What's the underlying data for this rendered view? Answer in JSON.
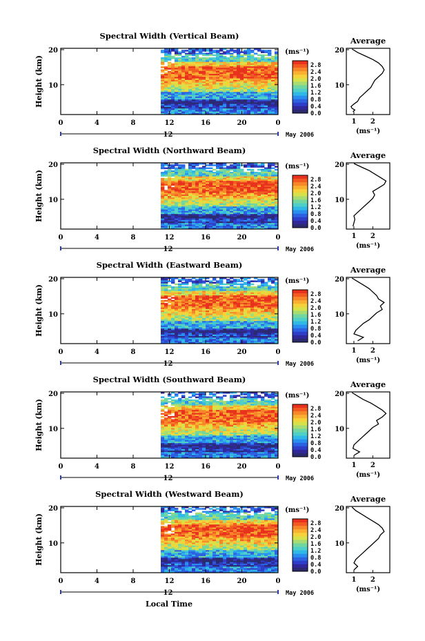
{
  "figure": {
    "xlabel": "Local Time"
  },
  "chart_data": [
    {
      "type": "heatmap",
      "title": "Spectral Width (Vertical Beam)",
      "ylabel": "Height (km)"
    },
    {
      "type": "heatmap",
      "title": "Spectral Width (Northward Beam)",
      "ylabel": "Height (km)"
    },
    {
      "type": "heatmap",
      "title": "Spectral Width (Eastward Beam)",
      "ylabel": "Height (km)"
    },
    {
      "type": "heatmap",
      "title": "Spectral Width (Southward Beam)",
      "ylabel": "Height (km)"
    },
    {
      "type": "heatmap",
      "title": "Spectral Width (Westward Beam)",
      "ylabel": "Height (km)"
    }
  ],
  "shared": {
    "x_ticks": [
      "0",
      "4",
      "8",
      "12",
      "16",
      "20",
      "0"
    ],
    "date_tick": "12",
    "date_label": "May 2006",
    "y_ticks": [
      "20",
      "10"
    ],
    "colorbar": {
      "unit": "(ms⁻¹)",
      "ticks": [
        "2.8",
        "2.4",
        "2.0",
        "1.6",
        "1.2",
        "0.8",
        "0.4",
        "0.0"
      ],
      "colors": [
        "#e8321e",
        "#f25a22",
        "#f7882a",
        "#f9b030",
        "#f5d23a",
        "#d7e24a",
        "#a6dc72",
        "#72d6a0",
        "#4ed0c8",
        "#30b8e6",
        "#2a8ef0",
        "#2c62e2",
        "#2e3ec8",
        "#30289a",
        "#2c2a6e"
      ]
    },
    "avg_title": "Average",
    "avg_y_ticks": [
      "20",
      "10"
    ],
    "avg_unit": "(ms⁻¹)"
  },
  "averages": [
    {
      "x_ticks": [
        "1",
        "2"
      ],
      "profile": [
        [
          0.95,
          2
        ],
        [
          1.05,
          2.5
        ],
        [
          0.9,
          3
        ],
        [
          0.85,
          3.5
        ],
        [
          1.0,
          4.2
        ],
        [
          1.2,
          5
        ],
        [
          1.3,
          6
        ],
        [
          1.5,
          7
        ],
        [
          1.7,
          8
        ],
        [
          1.9,
          9
        ],
        [
          2.0,
          10
        ],
        [
          2.1,
          11
        ],
        [
          2.3,
          12
        ],
        [
          2.5,
          13
        ],
        [
          2.6,
          14
        ],
        [
          2.5,
          15
        ],
        [
          2.3,
          16
        ],
        [
          2.0,
          17
        ],
        [
          1.6,
          18
        ],
        [
          1.2,
          19
        ],
        [
          0.9,
          20
        ]
      ]
    },
    {
      "x_ticks": [
        "1",
        "2"
      ],
      "profile": [
        [
          0.95,
          2
        ],
        [
          1.0,
          3
        ],
        [
          1.05,
          4
        ],
        [
          1.0,
          5
        ],
        [
          1.2,
          6
        ],
        [
          1.4,
          7
        ],
        [
          1.6,
          8
        ],
        [
          1.8,
          9
        ],
        [
          2.0,
          10
        ],
        [
          2.1,
          11
        ],
        [
          2.0,
          12
        ],
        [
          2.3,
          13
        ],
        [
          2.6,
          14
        ],
        [
          2.7,
          15
        ],
        [
          2.4,
          16
        ],
        [
          2.1,
          17
        ],
        [
          1.8,
          18
        ],
        [
          1.4,
          19
        ],
        [
          1.0,
          20
        ]
      ]
    },
    {
      "x_ticks": [
        "1",
        "2"
      ],
      "profile": [
        [
          1.2,
          2
        ],
        [
          1.5,
          3
        ],
        [
          1.0,
          4
        ],
        [
          1.1,
          5
        ],
        [
          1.3,
          6
        ],
        [
          1.5,
          7
        ],
        [
          1.8,
          8
        ],
        [
          2.0,
          9
        ],
        [
          2.2,
          10
        ],
        [
          2.5,
          11
        ],
        [
          2.4,
          12
        ],
        [
          2.6,
          13
        ],
        [
          2.3,
          14
        ],
        [
          2.2,
          15
        ],
        [
          2.0,
          16
        ],
        [
          1.8,
          17
        ],
        [
          1.5,
          18
        ],
        [
          1.2,
          19
        ],
        [
          0.9,
          20
        ]
      ]
    },
    {
      "x_ticks": [
        "1",
        "2"
      ],
      "profile": [
        [
          1.0,
          2
        ],
        [
          1.3,
          3
        ],
        [
          0.95,
          4
        ],
        [
          1.0,
          5
        ],
        [
          1.2,
          6
        ],
        [
          1.4,
          7
        ],
        [
          1.6,
          8
        ],
        [
          1.8,
          9
        ],
        [
          2.0,
          10
        ],
        [
          2.3,
          11
        ],
        [
          2.2,
          12
        ],
        [
          2.5,
          13
        ],
        [
          2.7,
          14
        ],
        [
          2.5,
          15
        ],
        [
          2.2,
          16
        ],
        [
          1.9,
          17
        ],
        [
          1.5,
          18
        ],
        [
          1.2,
          19
        ],
        [
          0.9,
          20
        ]
      ]
    },
    {
      "x_ticks": [
        "1",
        "2"
      ],
      "profile": [
        [
          1.0,
          2
        ],
        [
          1.2,
          3
        ],
        [
          1.0,
          4
        ],
        [
          1.1,
          5
        ],
        [
          1.3,
          6
        ],
        [
          1.5,
          7
        ],
        [
          1.7,
          8
        ],
        [
          1.9,
          9
        ],
        [
          2.1,
          10
        ],
        [
          2.3,
          11
        ],
        [
          2.4,
          12
        ],
        [
          2.6,
          13
        ],
        [
          2.5,
          14
        ],
        [
          2.3,
          15
        ],
        [
          2.0,
          16
        ],
        [
          1.7,
          17
        ],
        [
          1.4,
          18
        ],
        [
          1.1,
          19
        ],
        [
          0.9,
          20
        ]
      ]
    }
  ]
}
